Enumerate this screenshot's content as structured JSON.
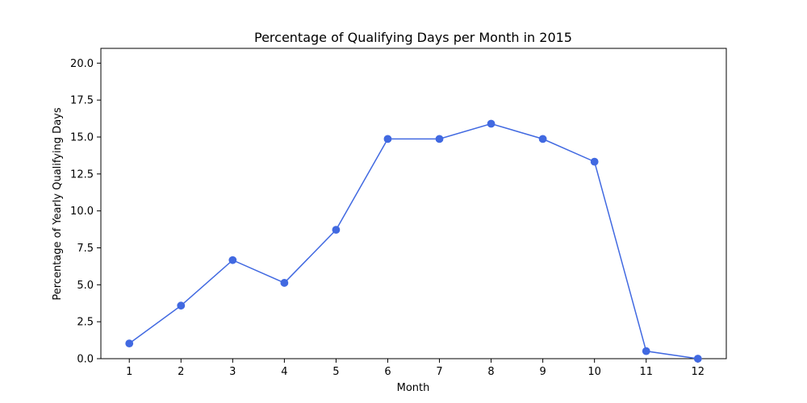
{
  "chart_data": {
    "type": "line",
    "title": "Percentage of Qualifying Days per Month in 2015",
    "xlabel": "Month",
    "ylabel": "Percentage of Yearly Qualifying Days",
    "x": [
      1,
      2,
      3,
      4,
      5,
      6,
      7,
      8,
      9,
      10,
      11,
      12
    ],
    "series": [
      {
        "values": [
          1.03,
          3.59,
          6.67,
          5.13,
          8.72,
          14.87,
          14.87,
          15.9,
          14.87,
          13.33,
          0.51,
          0.0
        ]
      }
    ],
    "xticks": [
      "1",
      "2",
      "3",
      "4",
      "5",
      "6",
      "7",
      "8",
      "9",
      "10",
      "11",
      "12"
    ],
    "yticks": [
      "0.0",
      "2.5",
      "5.0",
      "7.5",
      "10.0",
      "12.5",
      "15.0",
      "17.5",
      "20.0"
    ],
    "xlim": [
      0.45,
      12.55
    ],
    "ylim": [
      0,
      21
    ],
    "grid": false,
    "line_color": "#4169e1",
    "marker": "circle"
  }
}
